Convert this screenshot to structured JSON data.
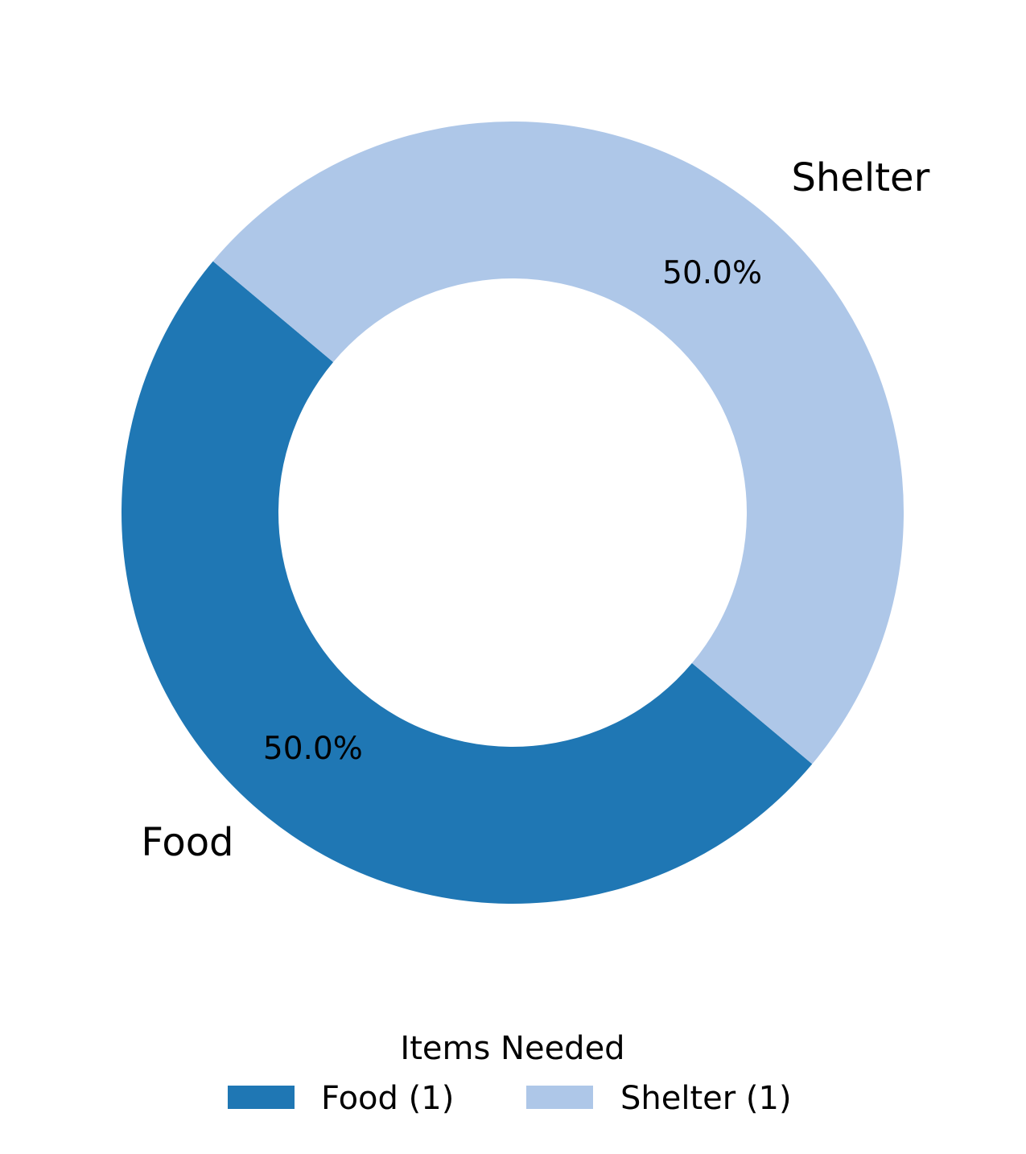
{
  "chart_data": {
    "type": "pie",
    "donut": true,
    "start_angle_deg": 140,
    "direction": "counterclockwise",
    "categories": [
      "Food",
      "Shelter"
    ],
    "values": [
      1,
      1
    ],
    "percent_labels": [
      "50.0%",
      "50.0%"
    ],
    "colors": [
      "#1f77b4",
      "#aec7e8"
    ],
    "legend": {
      "title": "Items Needed",
      "placement": "bottom-center",
      "entries": [
        "Food (1)",
        "Shelter (1)"
      ]
    }
  }
}
